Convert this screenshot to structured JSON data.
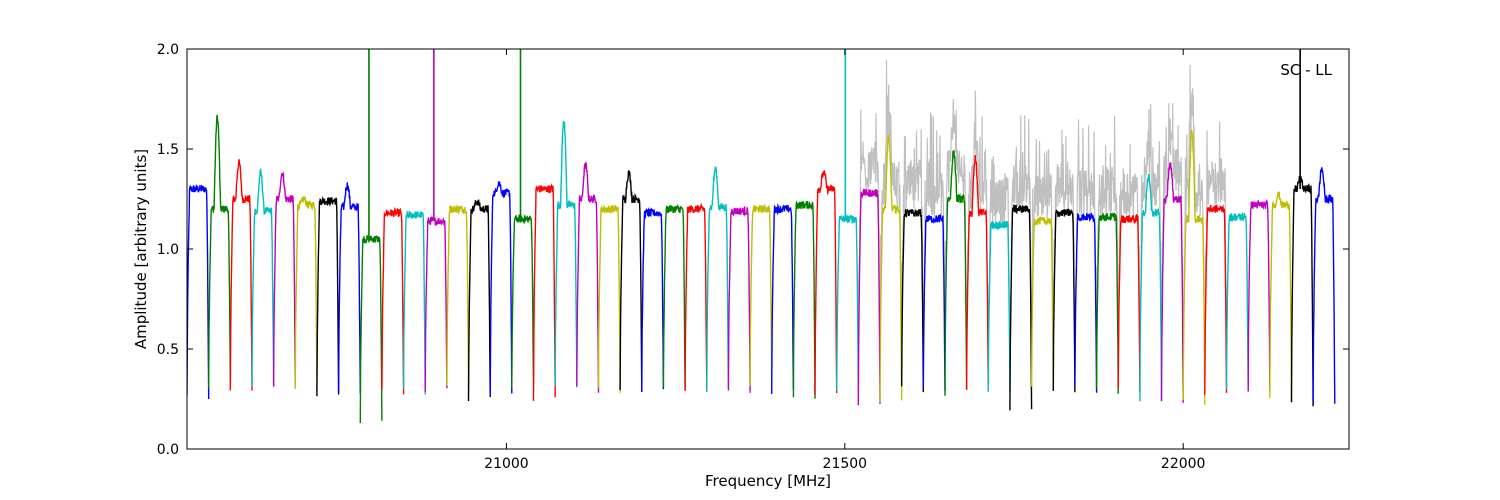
{
  "chart_data": {
    "type": "line",
    "xlabel": "Frequency [MHz]",
    "ylabel": "Amplitude [arbitrary units]",
    "annotation": "SC - LL",
    "xlim": [
      20528,
      22245
    ],
    "ylim": [
      0.0,
      2.0
    ],
    "xticks": [
      21000,
      21500,
      22000
    ],
    "yticks": [
      0.0,
      0.5,
      1.0,
      1.5,
      2.0
    ],
    "xtick_labels": [
      "21000",
      "21500",
      "22000"
    ],
    "ytick_labels": [
      "0.0",
      "0.5",
      "1.0",
      "1.5",
      "2.0"
    ],
    "grid": false,
    "background_trace_color": "#bfbfbf",
    "palette": [
      "#0000ff",
      "#008000",
      "#ff0000",
      "#00bfbf",
      "#bf00bf",
      "#bfbf00",
      "#000000"
    ],
    "channel_width_mhz": 32,
    "segments": [
      {
        "start": 20528,
        "color": "#0000ff",
        "level": 1.3,
        "dip": 0.26
      },
      {
        "start": 20560,
        "color": "#008000",
        "level": 1.2,
        "dip": 0.32,
        "peak": 1.66
      },
      {
        "start": 20592,
        "color": "#ff0000",
        "level": 1.25,
        "dip": 0.3,
        "peak": 1.43
      },
      {
        "start": 20624,
        "color": "#00bfbf",
        "level": 1.19,
        "dip": 0.3,
        "peak": 1.38
      },
      {
        "start": 20656,
        "color": "#bf00bf",
        "level": 1.25,
        "dip": 0.31,
        "peak": 1.38
      },
      {
        "start": 20688,
        "color": "#bfbf00",
        "level": 1.22,
        "dip": 0.3,
        "peak": 1.25
      },
      {
        "start": 20720,
        "color": "#000000",
        "level": 1.24,
        "dip": 0.28
      },
      {
        "start": 20752,
        "color": "#0000ff",
        "level": 1.21,
        "dip": 0.29,
        "peak": 1.32
      },
      {
        "start": 20784,
        "color": "#008000",
        "level": 1.05,
        "dip": 0.15,
        "spike": 2.0
      },
      {
        "start": 20816,
        "color": "#ff0000",
        "level": 1.18,
        "dip": 0.28
      },
      {
        "start": 20848,
        "color": "#00bfbf",
        "level": 1.17,
        "dip": 0.29
      },
      {
        "start": 20880,
        "color": "#bf00bf",
        "level": 1.14,
        "dip": 0.3,
        "spike": 2.0
      },
      {
        "start": 20912,
        "color": "#bfbf00",
        "level": 1.2,
        "dip": 0.3
      },
      {
        "start": 20944,
        "color": "#000000",
        "level": 1.2,
        "dip": 0.25,
        "peak": 1.24
      },
      {
        "start": 20976,
        "color": "#0000ff",
        "level": 1.28,
        "dip": 0.26,
        "peak": 1.33
      },
      {
        "start": 21008,
        "color": "#008000",
        "level": 1.15,
        "dip": 0.32,
        "spike": 2.0
      },
      {
        "start": 21040,
        "color": "#ff0000",
        "level": 1.3,
        "dip": 0.26
      },
      {
        "start": 21072,
        "color": "#00bfbf",
        "level": 1.22,
        "dip": 0.31,
        "peak": 1.64
      },
      {
        "start": 21104,
        "color": "#bf00bf",
        "level": 1.25,
        "dip": 0.3,
        "peak": 1.42
      },
      {
        "start": 21136,
        "color": "#bfbf00",
        "level": 1.2,
        "dip": 0.3
      },
      {
        "start": 21168,
        "color": "#000000",
        "level": 1.25,
        "dip": 0.28,
        "peak": 1.38
      },
      {
        "start": 21200,
        "color": "#0000ff",
        "level": 1.18,
        "dip": 0.3
      },
      {
        "start": 21232,
        "color": "#008000",
        "level": 1.2,
        "dip": 0.29
      },
      {
        "start": 21264,
        "color": "#ff0000",
        "level": 1.2,
        "dip": 0.28
      },
      {
        "start": 21296,
        "color": "#00bfbf",
        "level": 1.21,
        "dip": 0.29,
        "peak": 1.4
      },
      {
        "start": 21328,
        "color": "#bf00bf",
        "level": 1.19,
        "dip": 0.3
      },
      {
        "start": 21360,
        "color": "#bfbf00",
        "level": 1.2,
        "dip": 0.3
      },
      {
        "start": 21392,
        "color": "#0000ff",
        "level": 1.2,
        "dip": 0.29
      },
      {
        "start": 21424,
        "color": "#008000",
        "level": 1.22,
        "dip": 0.25
      },
      {
        "start": 21456,
        "color": "#ff0000",
        "level": 1.3,
        "dip": 0.27,
        "peak": 1.38
      },
      {
        "start": 21488,
        "color": "#00bfbf",
        "level": 1.15,
        "dip": 0.28,
        "spike": 2.0
      },
      {
        "start": 21520,
        "color": "#bf00bf",
        "level": 1.28,
        "dip": 0.22
      },
      {
        "start": 21552,
        "color": "#bfbf00",
        "level": 1.2,
        "dip": 0.25,
        "peak": 1.55
      },
      {
        "start": 21584,
        "color": "#000000",
        "level": 1.18,
        "dip": 0.3
      },
      {
        "start": 21616,
        "color": "#0000ff",
        "level": 1.15,
        "dip": 0.29
      },
      {
        "start": 21648,
        "color": "#008000",
        "level": 1.25,
        "dip": 0.28,
        "peak": 1.48
      },
      {
        "start": 21680,
        "color": "#ff0000",
        "level": 1.18,
        "dip": 0.29,
        "peak": 1.45
      },
      {
        "start": 21712,
        "color": "#00bfbf",
        "level": 1.12,
        "dip": 0.28
      },
      {
        "start": 21744,
        "color": "#000000",
        "level": 1.2,
        "dip": 0.18
      },
      {
        "start": 21776,
        "color": "#bfbf00",
        "level": 1.14,
        "dip": 0.3
      },
      {
        "start": 21808,
        "color": "#000000",
        "level": 1.18,
        "dip": 0.28
      },
      {
        "start": 21840,
        "color": "#0000ff",
        "level": 1.16,
        "dip": 0.29
      },
      {
        "start": 21872,
        "color": "#008000",
        "level": 1.16,
        "dip": 0.29
      },
      {
        "start": 21904,
        "color": "#ff0000",
        "level": 1.15,
        "dip": 0.29
      },
      {
        "start": 21936,
        "color": "#00bfbf",
        "level": 1.18,
        "dip": 0.25,
        "peak": 1.36
      },
      {
        "start": 21968,
        "color": "#bf00bf",
        "level": 1.25,
        "dip": 0.25,
        "peak": 1.42
      },
      {
        "start": 22000,
        "color": "#bfbf00",
        "level": 1.15,
        "dip": 0.23,
        "peak": 1.58
      },
      {
        "start": 22032,
        "color": "#ff0000",
        "level": 1.2,
        "dip": 0.28
      },
      {
        "start": 22064,
        "color": "#00bfbf",
        "level": 1.16,
        "dip": 0.3
      },
      {
        "start": 22096,
        "color": "#bf00bf",
        "level": 1.22,
        "dip": 0.3
      },
      {
        "start": 22128,
        "color": "#bfbf00",
        "level": 1.22,
        "dip": 0.25,
        "peak": 1.27
      },
      {
        "start": 22160,
        "color": "#000000",
        "level": 1.3,
        "dip": 0.22,
        "peak": 1.35,
        "spike": 2.0
      },
      {
        "start": 22192,
        "color": "#0000ff",
        "level": 1.25,
        "dip": 0.22,
        "peak": 1.4
      }
    ]
  }
}
